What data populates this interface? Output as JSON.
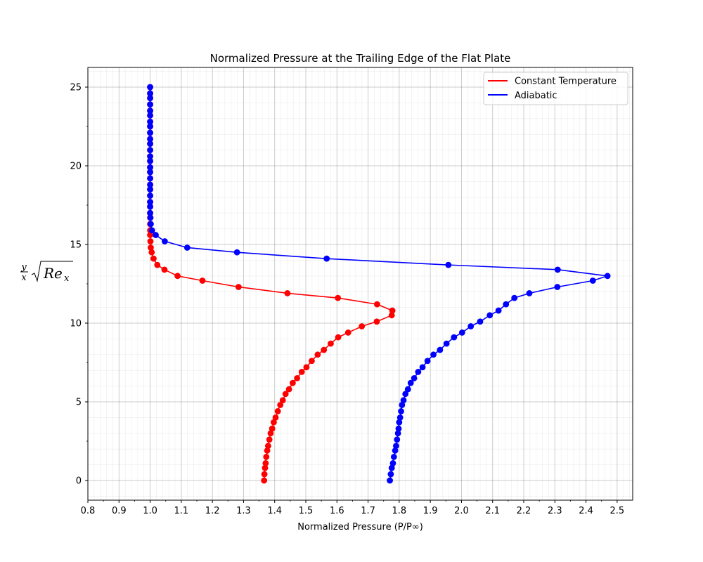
{
  "chart_data": {
    "type": "line",
    "title": "Normalized Pressure at the Trailing Edge of the Flat Plate",
    "xlabel": "Normalized Pressure (P/P∞)",
    "ylabel_parts": {
      "y": "y",
      "x": "x",
      "re": "Re",
      "sub": "x"
    },
    "xlim": [
      0.8,
      2.55
    ],
    "ylim": [
      -1.25,
      26.25
    ],
    "x_ticks": [
      "0.8",
      "0.9",
      "1.0",
      "1.1",
      "1.2",
      "1.3",
      "1.4",
      "1.5",
      "1.6",
      "1.7",
      "1.8",
      "1.9",
      "2.0",
      "2.1",
      "2.2",
      "2.3",
      "2.4",
      "2.5"
    ],
    "y_ticks": [
      "0",
      "5",
      "10",
      "15",
      "20",
      "25"
    ],
    "grid": true,
    "legend_position": "top-right",
    "series": [
      {
        "name": "Constant Temperature",
        "color": "#ff0000",
        "points": [
          [
            1.366,
            0
          ],
          [
            1.367,
            0.4
          ],
          [
            1.369,
            0.8
          ],
          [
            1.371,
            1.1
          ],
          [
            1.373,
            1.5
          ],
          [
            1.376,
            1.9
          ],
          [
            1.379,
            2.2
          ],
          [
            1.383,
            2.6
          ],
          [
            1.387,
            3.0
          ],
          [
            1.392,
            3.3
          ],
          [
            1.397,
            3.7
          ],
          [
            1.403,
            4.0
          ],
          [
            1.41,
            4.4
          ],
          [
            1.418,
            4.8
          ],
          [
            1.426,
            5.1
          ],
          [
            1.435,
            5.5
          ],
          [
            1.446,
            5.8
          ],
          [
            1.458,
            6.2
          ],
          [
            1.472,
            6.5
          ],
          [
            1.487,
            6.9
          ],
          [
            1.502,
            7.2
          ],
          [
            1.519,
            7.6
          ],
          [
            1.538,
            8.0
          ],
          [
            1.558,
            8.3
          ],
          [
            1.58,
            8.7
          ],
          [
            1.604,
            9.1
          ],
          [
            1.636,
            9.4
          ],
          [
            1.68,
            9.8
          ],
          [
            1.728,
            10.1
          ],
          [
            1.776,
            10.5
          ],
          [
            1.778,
            10.8
          ],
          [
            1.729,
            11.2
          ],
          [
            1.603,
            11.6
          ],
          [
            1.441,
            11.9
          ],
          [
            1.284,
            12.3
          ],
          [
            1.168,
            12.7
          ],
          [
            1.088,
            13.0
          ],
          [
            1.046,
            13.4
          ],
          [
            1.023,
            13.7
          ],
          [
            1.011,
            14.1
          ],
          [
            1.005,
            14.5
          ],
          [
            1.002,
            14.8
          ],
          [
            1.001,
            15.2
          ],
          [
            1.0,
            15.6
          ],
          [
            1.0,
            15.9
          ],
          [
            1.0,
            16.3
          ],
          [
            1.0,
            16.7
          ],
          [
            1.0,
            17.0
          ],
          [
            1.0,
            17.4
          ],
          [
            1.0,
            17.7
          ],
          [
            1.0,
            18.1
          ],
          [
            1.0,
            18.5
          ],
          [
            1.0,
            18.8
          ],
          [
            1.0,
            19.2
          ],
          [
            1.0,
            19.6
          ],
          [
            1.0,
            19.9
          ],
          [
            1.0,
            20.3
          ],
          [
            1.0,
            20.6
          ],
          [
            1.0,
            21.0
          ],
          [
            1.0,
            21.4
          ],
          [
            1.0,
            21.7
          ],
          [
            1.0,
            22.1
          ],
          [
            1.0,
            22.5
          ],
          [
            1.0,
            22.8
          ],
          [
            1.0,
            23.2
          ],
          [
            1.0,
            23.5
          ],
          [
            1.0,
            23.9
          ],
          [
            1.0,
            24.3
          ],
          [
            1.0,
            24.6
          ],
          [
            1.0,
            25.0
          ]
        ]
      },
      {
        "name": "Adiabatic",
        "color": "#0000ff",
        "points": [
          [
            1.77,
            0
          ],
          [
            1.773,
            0.4
          ],
          [
            1.776,
            0.8
          ],
          [
            1.78,
            1.1
          ],
          [
            1.783,
            1.5
          ],
          [
            1.787,
            1.9
          ],
          [
            1.79,
            2.2
          ],
          [
            1.793,
            2.6
          ],
          [
            1.796,
            3.0
          ],
          [
            1.798,
            3.3
          ],
          [
            1.8,
            3.7
          ],
          [
            1.803,
            4.0
          ],
          [
            1.806,
            4.4
          ],
          [
            1.809,
            4.8
          ],
          [
            1.814,
            5.1
          ],
          [
            1.82,
            5.5
          ],
          [
            1.828,
            5.8
          ],
          [
            1.837,
            6.2
          ],
          [
            1.848,
            6.5
          ],
          [
            1.861,
            6.9
          ],
          [
            1.875,
            7.2
          ],
          [
            1.891,
            7.6
          ],
          [
            1.91,
            8.0
          ],
          [
            1.931,
            8.3
          ],
          [
            1.952,
            8.7
          ],
          [
            1.976,
            9.1
          ],
          [
            2.002,
            9.4
          ],
          [
            2.03,
            9.8
          ],
          [
            2.06,
            10.1
          ],
          [
            2.091,
            10.5
          ],
          [
            2.119,
            10.8
          ],
          [
            2.143,
            11.2
          ],
          [
            2.17,
            11.6
          ],
          [
            2.218,
            11.9
          ],
          [
            2.308,
            12.3
          ],
          [
            2.422,
            12.7
          ],
          [
            2.469,
            13.0
          ],
          [
            2.309,
            13.4
          ],
          [
            1.958,
            13.7
          ],
          [
            1.567,
            14.1
          ],
          [
            1.279,
            14.5
          ],
          [
            1.119,
            14.8
          ],
          [
            1.047,
            15.2
          ],
          [
            1.018,
            15.6
          ],
          [
            1.006,
            15.9
          ],
          [
            1.002,
            16.3
          ],
          [
            1.001,
            16.7
          ],
          [
            1.0,
            17.0
          ],
          [
            1.0,
            17.4
          ],
          [
            1.0,
            17.7
          ],
          [
            1.0,
            18.1
          ],
          [
            1.0,
            18.5
          ],
          [
            1.0,
            18.8
          ],
          [
            1.0,
            19.2
          ],
          [
            1.0,
            19.6
          ],
          [
            1.0,
            19.9
          ],
          [
            1.0,
            20.3
          ],
          [
            1.0,
            20.6
          ],
          [
            1.0,
            21.0
          ],
          [
            1.0,
            21.4
          ],
          [
            1.0,
            21.7
          ],
          [
            1.0,
            22.1
          ],
          [
            1.0,
            22.5
          ],
          [
            1.0,
            22.8
          ],
          [
            1.0,
            23.2
          ],
          [
            1.0,
            23.5
          ],
          [
            1.0,
            23.9
          ],
          [
            1.0,
            24.3
          ],
          [
            1.0,
            24.6
          ],
          [
            1.0,
            25.0
          ]
        ]
      }
    ]
  }
}
